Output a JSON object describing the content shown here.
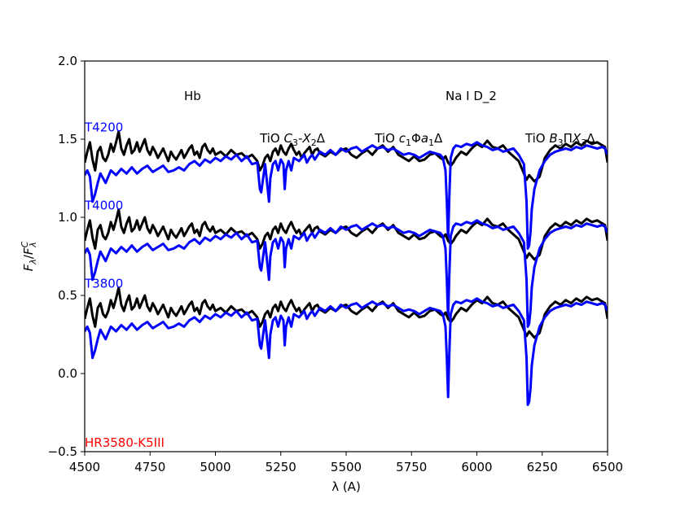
{
  "chart_data": {
    "type": "line",
    "xlabel": "λ (A)",
    "ylabel": "F_λ/F^C_λ",
    "xlim": [
      4500,
      6500
    ],
    "ylim": [
      -0.5,
      2.0
    ],
    "x_ticks": [
      4500,
      4750,
      5000,
      5250,
      5500,
      5750,
      6000,
      6250,
      6500
    ],
    "y_ticks": [
      -0.5,
      0.0,
      0.5,
      1.0,
      1.5,
      2.0
    ],
    "grid": false,
    "annotations": [
      {
        "text": "Hb",
        "x": 4880,
        "y": 1.75
      },
      {
        "text": "TiO C3-X2Δ",
        "x": 5170,
        "y": 1.48
      },
      {
        "text": "TiO c1Φa1Δ",
        "x": 5610,
        "y": 1.48
      },
      {
        "text": "Na I D_2",
        "x": 5880,
        "y": 1.75
      },
      {
        "text": "TiO B3ΠX3Δ",
        "x": 6185,
        "y": 1.48
      }
    ],
    "annotation_parts": {
      "tio": "TiO",
      "c": "C",
      "c3": "3",
      "x": "X",
      "x2": "2",
      "dash": "-",
      "delta": "Δ",
      "c_lower": "c",
      "c1": "1",
      "phi": "Φ",
      "a": "a",
      "a1": "1",
      "b": "B",
      "b3": "3",
      "pi": "Π",
      "x3": "3"
    },
    "label_left": [
      {
        "text": "T4200",
        "x": 4500,
        "y": 1.55,
        "color": "#0000ff"
      },
      {
        "text": "T4000",
        "x": 4500,
        "y": 1.05,
        "color": "#0000ff"
      },
      {
        "text": "T3800",
        "x": 4500,
        "y": 0.55,
        "color": "#0000ff"
      },
      {
        "text": "HR3580-K5III",
        "x": 4500,
        "y": -0.47,
        "color": "#ff0000"
      }
    ],
    "series": [
      {
        "color": "#000000",
        "offset": 1.0,
        "role": "observed"
      },
      {
        "color": "#0000ff",
        "offset": 1.0,
        "role": "model"
      },
      {
        "color": "#000000",
        "offset": 0.5,
        "role": "observed"
      },
      {
        "color": "#0000ff",
        "offset": 0.5,
        "role": "model"
      },
      {
        "color": "#000000",
        "offset": 0.0,
        "role": "observed"
      },
      {
        "color": "#0000ff",
        "offset": 0.0,
        "role": "model"
      }
    ],
    "observed_profile": {
      "x": [
        4500,
        4510,
        4520,
        4530,
        4540,
        4550,
        4560,
        4570,
        4580,
        4590,
        4600,
        4610,
        4620,
        4630,
        4640,
        4650,
        4660,
        4670,
        4680,
        4690,
        4700,
        4710,
        4720,
        4730,
        4740,
        4750,
        4760,
        4770,
        4780,
        4790,
        4800,
        4810,
        4820,
        4830,
        4840,
        4850,
        4860,
        4870,
        4880,
        4890,
        4900,
        4910,
        4920,
        4930,
        4940,
        4950,
        4960,
        4970,
        4980,
        4990,
        5000,
        5020,
        5040,
        5060,
        5080,
        5100,
        5120,
        5140,
        5160,
        5170,
        5180,
        5190,
        5200,
        5210,
        5220,
        5230,
        5240,
        5250,
        5260,
        5270,
        5280,
        5290,
        5300,
        5310,
        5320,
        5330,
        5340,
        5350,
        5360,
        5370,
        5380,
        5390,
        5400,
        5420,
        5440,
        5460,
        5480,
        5500,
        5520,
        5540,
        5560,
        5580,
        5600,
        5620,
        5640,
        5660,
        5680,
        5700,
        5720,
        5740,
        5760,
        5780,
        5800,
        5820,
        5840,
        5860,
        5870,
        5880,
        5890,
        5900,
        5910,
        5920,
        5940,
        5960,
        5980,
        6000,
        6020,
        6040,
        6060,
        6080,
        6100,
        6120,
        6140,
        6160,
        6180,
        6190,
        6200,
        6210,
        6220,
        6240,
        6260,
        6280,
        6300,
        6320,
        6340,
        6360,
        6380,
        6400,
        6420,
        6440,
        6460,
        6480,
        6490,
        6500
      ],
      "y": [
        0.35,
        0.42,
        0.48,
        0.37,
        0.3,
        0.42,
        0.45,
        0.38,
        0.36,
        0.4,
        0.47,
        0.42,
        0.48,
        0.55,
        0.44,
        0.4,
        0.46,
        0.5,
        0.41,
        0.43,
        0.48,
        0.42,
        0.46,
        0.5,
        0.43,
        0.4,
        0.45,
        0.42,
        0.38,
        0.41,
        0.44,
        0.4,
        0.36,
        0.42,
        0.39,
        0.37,
        0.4,
        0.43,
        0.38,
        0.41,
        0.44,
        0.46,
        0.4,
        0.42,
        0.38,
        0.45,
        0.47,
        0.43,
        0.41,
        0.44,
        0.4,
        0.42,
        0.39,
        0.43,
        0.4,
        0.41,
        0.38,
        0.4,
        0.36,
        0.3,
        0.33,
        0.38,
        0.4,
        0.36,
        0.42,
        0.44,
        0.4,
        0.46,
        0.42,
        0.4,
        0.44,
        0.47,
        0.43,
        0.4,
        0.42,
        0.38,
        0.41,
        0.43,
        0.45,
        0.4,
        0.43,
        0.44,
        0.41,
        0.39,
        0.42,
        0.4,
        0.43,
        0.44,
        0.4,
        0.38,
        0.41,
        0.43,
        0.4,
        0.44,
        0.46,
        0.42,
        0.45,
        0.4,
        0.38,
        0.36,
        0.39,
        0.36,
        0.37,
        0.4,
        0.41,
        0.38,
        0.37,
        0.39,
        0.35,
        0.33,
        0.35,
        0.38,
        0.42,
        0.4,
        0.44,
        0.47,
        0.45,
        0.49,
        0.45,
        0.44,
        0.46,
        0.42,
        0.39,
        0.36,
        0.28,
        0.24,
        0.27,
        0.25,
        0.23,
        0.26,
        0.38,
        0.43,
        0.46,
        0.44,
        0.47,
        0.45,
        0.48,
        0.46,
        0.49,
        0.47,
        0.48,
        0.46,
        0.45,
        0.35
      ]
    },
    "model_profile": {
      "x": [
        4500,
        4510,
        4520,
        4530,
        4540,
        4550,
        4560,
        4570,
        4580,
        4590,
        4600,
        4620,
        4640,
        4660,
        4680,
        4700,
        4720,
        4740,
        4760,
        4780,
        4800,
        4820,
        4840,
        4860,
        4880,
        4900,
        4920,
        4940,
        4960,
        4980,
        5000,
        5020,
        5040,
        5060,
        5080,
        5100,
        5120,
        5140,
        5160,
        5170,
        5175,
        5180,
        5190,
        5200,
        5205,
        5210,
        5220,
        5230,
        5240,
        5250,
        5260,
        5265,
        5270,
        5280,
        5290,
        5300,
        5320,
        5340,
        5350,
        5360,
        5370,
        5380,
        5400,
        5420,
        5440,
        5460,
        5480,
        5500,
        5520,
        5540,
        5560,
        5580,
        5600,
        5620,
        5640,
        5660,
        5680,
        5700,
        5720,
        5740,
        5760,
        5780,
        5800,
        5820,
        5840,
        5860,
        5870,
        5880,
        5885,
        5890,
        5895,
        5900,
        5910,
        5920,
        5940,
        5960,
        5980,
        6000,
        6020,
        6040,
        6060,
        6080,
        6100,
        6120,
        6140,
        6160,
        6180,
        6190,
        6195,
        6200,
        6205,
        6210,
        6220,
        6240,
        6260,
        6280,
        6300,
        6320,
        6340,
        6360,
        6380,
        6400,
        6420,
        6440,
        6460,
        6480,
        6490,
        6500
      ],
      "y": [
        0.27,
        0.3,
        0.26,
        0.1,
        0.15,
        0.22,
        0.28,
        0.25,
        0.22,
        0.26,
        0.3,
        0.27,
        0.31,
        0.28,
        0.32,
        0.28,
        0.31,
        0.33,
        0.29,
        0.31,
        0.33,
        0.29,
        0.3,
        0.32,
        0.3,
        0.34,
        0.36,
        0.33,
        0.37,
        0.35,
        0.38,
        0.36,
        0.39,
        0.37,
        0.4,
        0.36,
        0.39,
        0.34,
        0.35,
        0.18,
        0.16,
        0.22,
        0.34,
        0.18,
        0.1,
        0.25,
        0.34,
        0.36,
        0.3,
        0.37,
        0.34,
        0.18,
        0.3,
        0.36,
        0.3,
        0.38,
        0.36,
        0.4,
        0.35,
        0.38,
        0.4,
        0.37,
        0.42,
        0.4,
        0.43,
        0.4,
        0.44,
        0.42,
        0.44,
        0.45,
        0.42,
        0.44,
        0.46,
        0.44,
        0.45,
        0.43,
        0.44,
        0.42,
        0.4,
        0.41,
        0.4,
        0.38,
        0.4,
        0.42,
        0.41,
        0.4,
        0.38,
        0.3,
        0.1,
        -0.15,
        0.15,
        0.38,
        0.44,
        0.46,
        0.45,
        0.47,
        0.46,
        0.48,
        0.46,
        0.45,
        0.43,
        0.44,
        0.42,
        0.43,
        0.44,
        0.4,
        0.34,
        0.1,
        -0.2,
        -0.18,
        -0.1,
        0.05,
        0.18,
        0.3,
        0.36,
        0.4,
        0.42,
        0.43,
        0.44,
        0.43,
        0.45,
        0.44,
        0.46,
        0.45,
        0.44,
        0.45,
        0.44,
        0.4
      ]
    }
  }
}
